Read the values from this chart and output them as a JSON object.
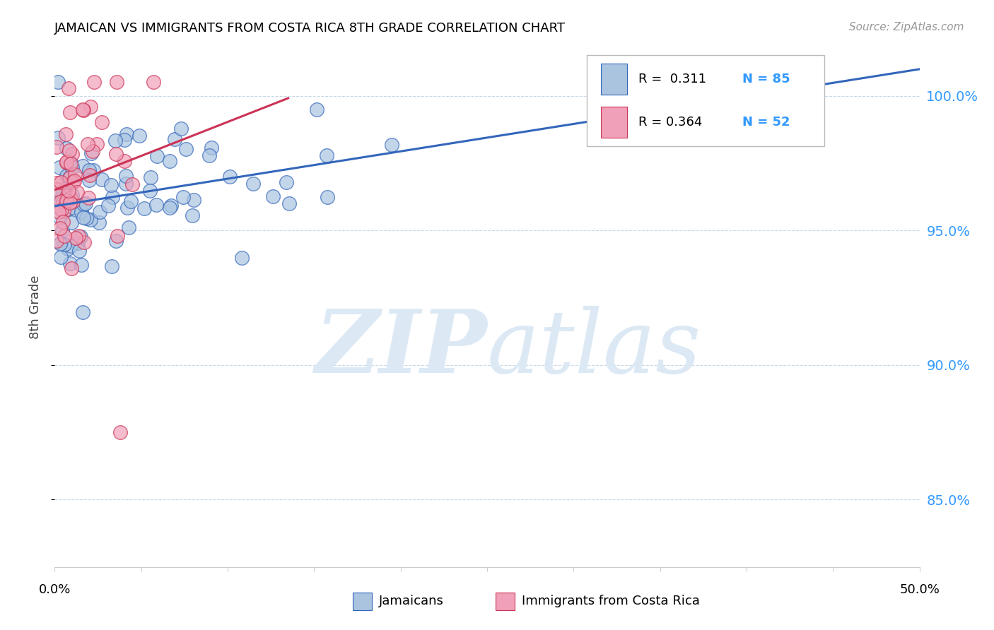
{
  "title": "JAMAICAN VS IMMIGRANTS FROM COSTA RICA 8TH GRADE CORRELATION CHART",
  "source": "Source: ZipAtlas.com",
  "ylabel": "8th Grade",
  "ytick_values": [
    0.85,
    0.9,
    0.95,
    1.0
  ],
  "xmin": 0.0,
  "xmax": 0.5,
  "ymin": 0.825,
  "ymax": 1.018,
  "color_blue": "#aac4e0",
  "color_pink": "#f0a0b8",
  "color_blue_line": "#3366bb",
  "color_pink_line": "#cc3355",
  "color_blue_text": "#3399ff",
  "watermark_color": "#dce9f5",
  "grid_color": "#c8d8e8",
  "source_color": "#999999"
}
